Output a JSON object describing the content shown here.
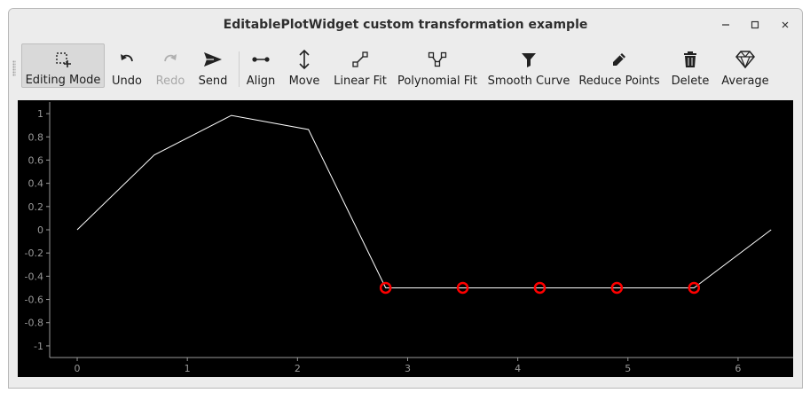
{
  "window": {
    "title": "EditablePlotWidget custom transformation example"
  },
  "window_controls": {
    "minimize_icon": "minimize-icon",
    "maximize_icon": "maximize-icon",
    "close_icon": "close-icon"
  },
  "toolbar": {
    "items": [
      {
        "label": "Editing Mode",
        "icon": "select-add-icon",
        "active": true
      },
      {
        "label": "Undo",
        "icon": "undo-icon"
      },
      {
        "label": "Redo",
        "icon": "redo-icon",
        "disabled": true
      },
      {
        "label": "Send",
        "icon": "send-icon"
      },
      {
        "label": "Align",
        "icon": "align-icon"
      },
      {
        "label": "Move",
        "icon": "move-vertical-icon"
      },
      {
        "label": "Linear Fit",
        "icon": "linear-fit-icon"
      },
      {
        "label": "Polynomial Fit",
        "icon": "polynomial-fit-icon"
      },
      {
        "label": "Smooth Curve",
        "icon": "filter-icon"
      },
      {
        "label": "Reduce Points",
        "icon": "pencil-icon"
      },
      {
        "label": "Delete",
        "icon": "trash-icon"
      },
      {
        "label": "Average",
        "icon": "diamond-icon"
      }
    ]
  },
  "colors": {
    "plot_background": "#000000",
    "line": "#ffffff",
    "selected_marker": "#ff0000",
    "axis": "#9a9a9a"
  },
  "chart_data": {
    "type": "line",
    "title": "",
    "xlabel": "",
    "ylabel": "",
    "xlim": [
      -0.25,
      6.5
    ],
    "ylim": [
      -1.1,
      1.1
    ],
    "xticks": [
      0,
      1,
      2,
      3,
      4,
      5,
      6
    ],
    "yticks": [
      1,
      0.8,
      0.6,
      0.4,
      0.2,
      0,
      -0.2,
      -0.4,
      -0.6,
      -0.8,
      -1
    ],
    "xtick_labels": [
      "0",
      "1",
      "2",
      "3",
      "4",
      "5",
      "6"
    ],
    "ytick_labels": [
      "1",
      "0.8",
      "0.6",
      "0.4",
      "0.2",
      "0",
      "-0.2",
      "-0.4",
      "-0.6",
      "-0.8",
      "-1"
    ],
    "grid": false,
    "series": [
      {
        "x": [
          0,
          0.7,
          1.4,
          2.1,
          2.8,
          3.5,
          4.2,
          4.9,
          5.6,
          6.3
        ],
        "y": [
          0,
          0.644,
          0.985,
          0.863,
          -0.5,
          -0.5,
          -0.5,
          -0.5,
          -0.5,
          0.0
        ]
      }
    ],
    "selected_points": [
      {
        "x": 2.8,
        "y": -0.5
      },
      {
        "x": 3.5,
        "y": -0.5
      },
      {
        "x": 4.2,
        "y": -0.5
      },
      {
        "x": 4.9,
        "y": -0.5
      },
      {
        "x": 5.6,
        "y": -0.5
      }
    ]
  }
}
